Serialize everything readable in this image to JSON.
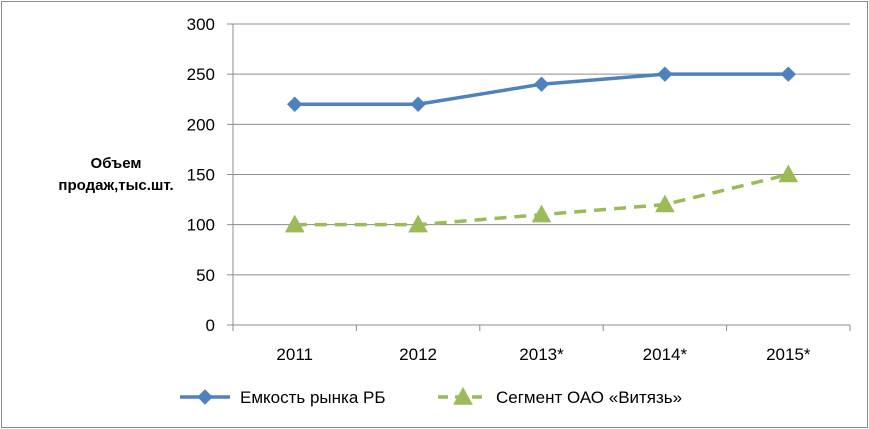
{
  "chart_data": {
    "type": "line",
    "categories": [
      "2011",
      "2012",
      "2013*",
      "2014*",
      "2015*"
    ],
    "series": [
      {
        "name": "Емкость рынка РБ",
        "values": [
          220,
          220,
          240,
          250,
          250
        ],
        "color": "#4f81bd",
        "marker": "diamond",
        "dash": "solid"
      },
      {
        "name": "Сегмент ОАО «Витязь»",
        "values": [
          100,
          100,
          110,
          120,
          150
        ],
        "color": "#9bbb59",
        "marker": "triangle",
        "dash": "dashed"
      }
    ],
    "ylabel_lines": [
      "Объем",
      "продаж,тыс.шт."
    ],
    "ylim": [
      0,
      300
    ],
    "yticks": [
      0,
      50,
      100,
      150,
      200,
      250,
      300
    ],
    "grid": true,
    "legend_position": "bottom"
  }
}
